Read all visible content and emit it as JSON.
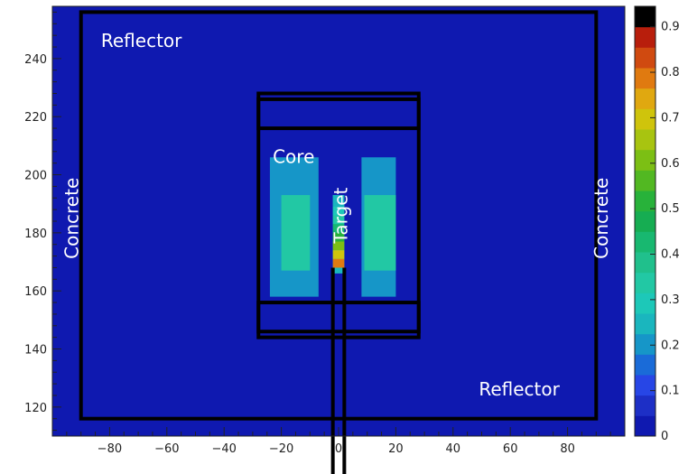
{
  "chart_data": {
    "type": "heatmap",
    "title": "",
    "xlabel": "",
    "ylabel": "",
    "xlim": [
      -100,
      100
    ],
    "ylim": [
      110,
      258
    ],
    "x_ticks": [
      -80,
      -60,
      -40,
      -20,
      0,
      20,
      40,
      60,
      80
    ],
    "y_ticks": [
      120,
      140,
      160,
      180,
      200,
      220,
      240
    ],
    "colorbar": {
      "min": 0,
      "max": 0.9,
      "ticks": [
        0,
        0.1,
        0.2,
        0.3,
        0.4,
        0.5,
        0.6,
        0.7,
        0.8,
        0.9
      ],
      "colors": [
        "#0f19b0",
        "#1d2fc6",
        "#2746e6",
        "#1a6bd8",
        "#1696c8",
        "#1ab6be",
        "#1dc8b8",
        "#22c8a4",
        "#20c08c",
        "#18b870",
        "#16ad52",
        "#28b23a",
        "#52b822",
        "#7cbf14",
        "#a8c410",
        "#cfc40c",
        "#e0a810",
        "#e07a10",
        "#d04a10",
        "#b81e0c",
        "#000000"
      ]
    },
    "background_value": 0.02,
    "fields": [
      {
        "name": "core-left",
        "x": [
          -24,
          -7
        ],
        "y": [
          158,
          206
        ],
        "value": 0.22
      },
      {
        "name": "core-left-inner",
        "x": [
          -20,
          -10
        ],
        "y": [
          167,
          193
        ],
        "value": 0.33
      },
      {
        "name": "core-right",
        "x": [
          8,
          20
        ],
        "y": [
          158,
          206
        ],
        "value": 0.22
      },
      {
        "name": "core-right-inner",
        "x": [
          9,
          20
        ],
        "y": [
          167,
          193
        ],
        "value": 0.33
      },
      {
        "name": "target-channel",
        "x": [
          -2,
          2
        ],
        "y": [
          166,
          193
        ],
        "value": 0.26
      }
    ],
    "target_profile": {
      "x": [
        -2,
        2
      ],
      "y": [
        193,
        189,
        186,
        183,
        180,
        177,
        174,
        171,
        168
      ],
      "values": [
        0.26,
        0.3,
        0.36,
        0.44,
        0.52,
        0.6,
        0.7,
        0.78,
        0.85
      ]
    },
    "structures": [
      {
        "name": "outer-reflector-boundary",
        "x": [
          -90,
          90
        ],
        "y": [
          116,
          256
        ]
      },
      {
        "name": "core-vessel",
        "x": [
          -28,
          28
        ],
        "y": [
          144,
          228
        ]
      },
      {
        "name": "vessel-top-band",
        "x": [
          -28,
          28
        ],
        "y": [
          216,
          226
        ]
      },
      {
        "name": "vessel-bottom-band",
        "x": [
          -28,
          28
        ],
        "y": [
          146,
          156
        ]
      }
    ],
    "vertical_lines": [
      {
        "name": "beam-pipe-left",
        "x": -2,
        "y": [
          104,
          168
        ]
      },
      {
        "name": "beam-pipe-right",
        "x": 2,
        "y": [
          104,
          168
        ]
      }
    ],
    "annotations": [
      {
        "text": "Reflector",
        "x": -83,
        "y": 244,
        "rotate": 0
      },
      {
        "text": "Reflector",
        "x": 49,
        "y": 124,
        "rotate": 0
      },
      {
        "text": "Core",
        "x": -23,
        "y": 204,
        "rotate": 0
      },
      {
        "text": "Target",
        "x": 3,
        "y": 186,
        "rotate": -90
      },
      {
        "text": "Concrete",
        "x": -91,
        "y": 185,
        "rotate": -90
      },
      {
        "text": "Concrete",
        "x": 94,
        "y": 185,
        "rotate": -90
      }
    ]
  }
}
